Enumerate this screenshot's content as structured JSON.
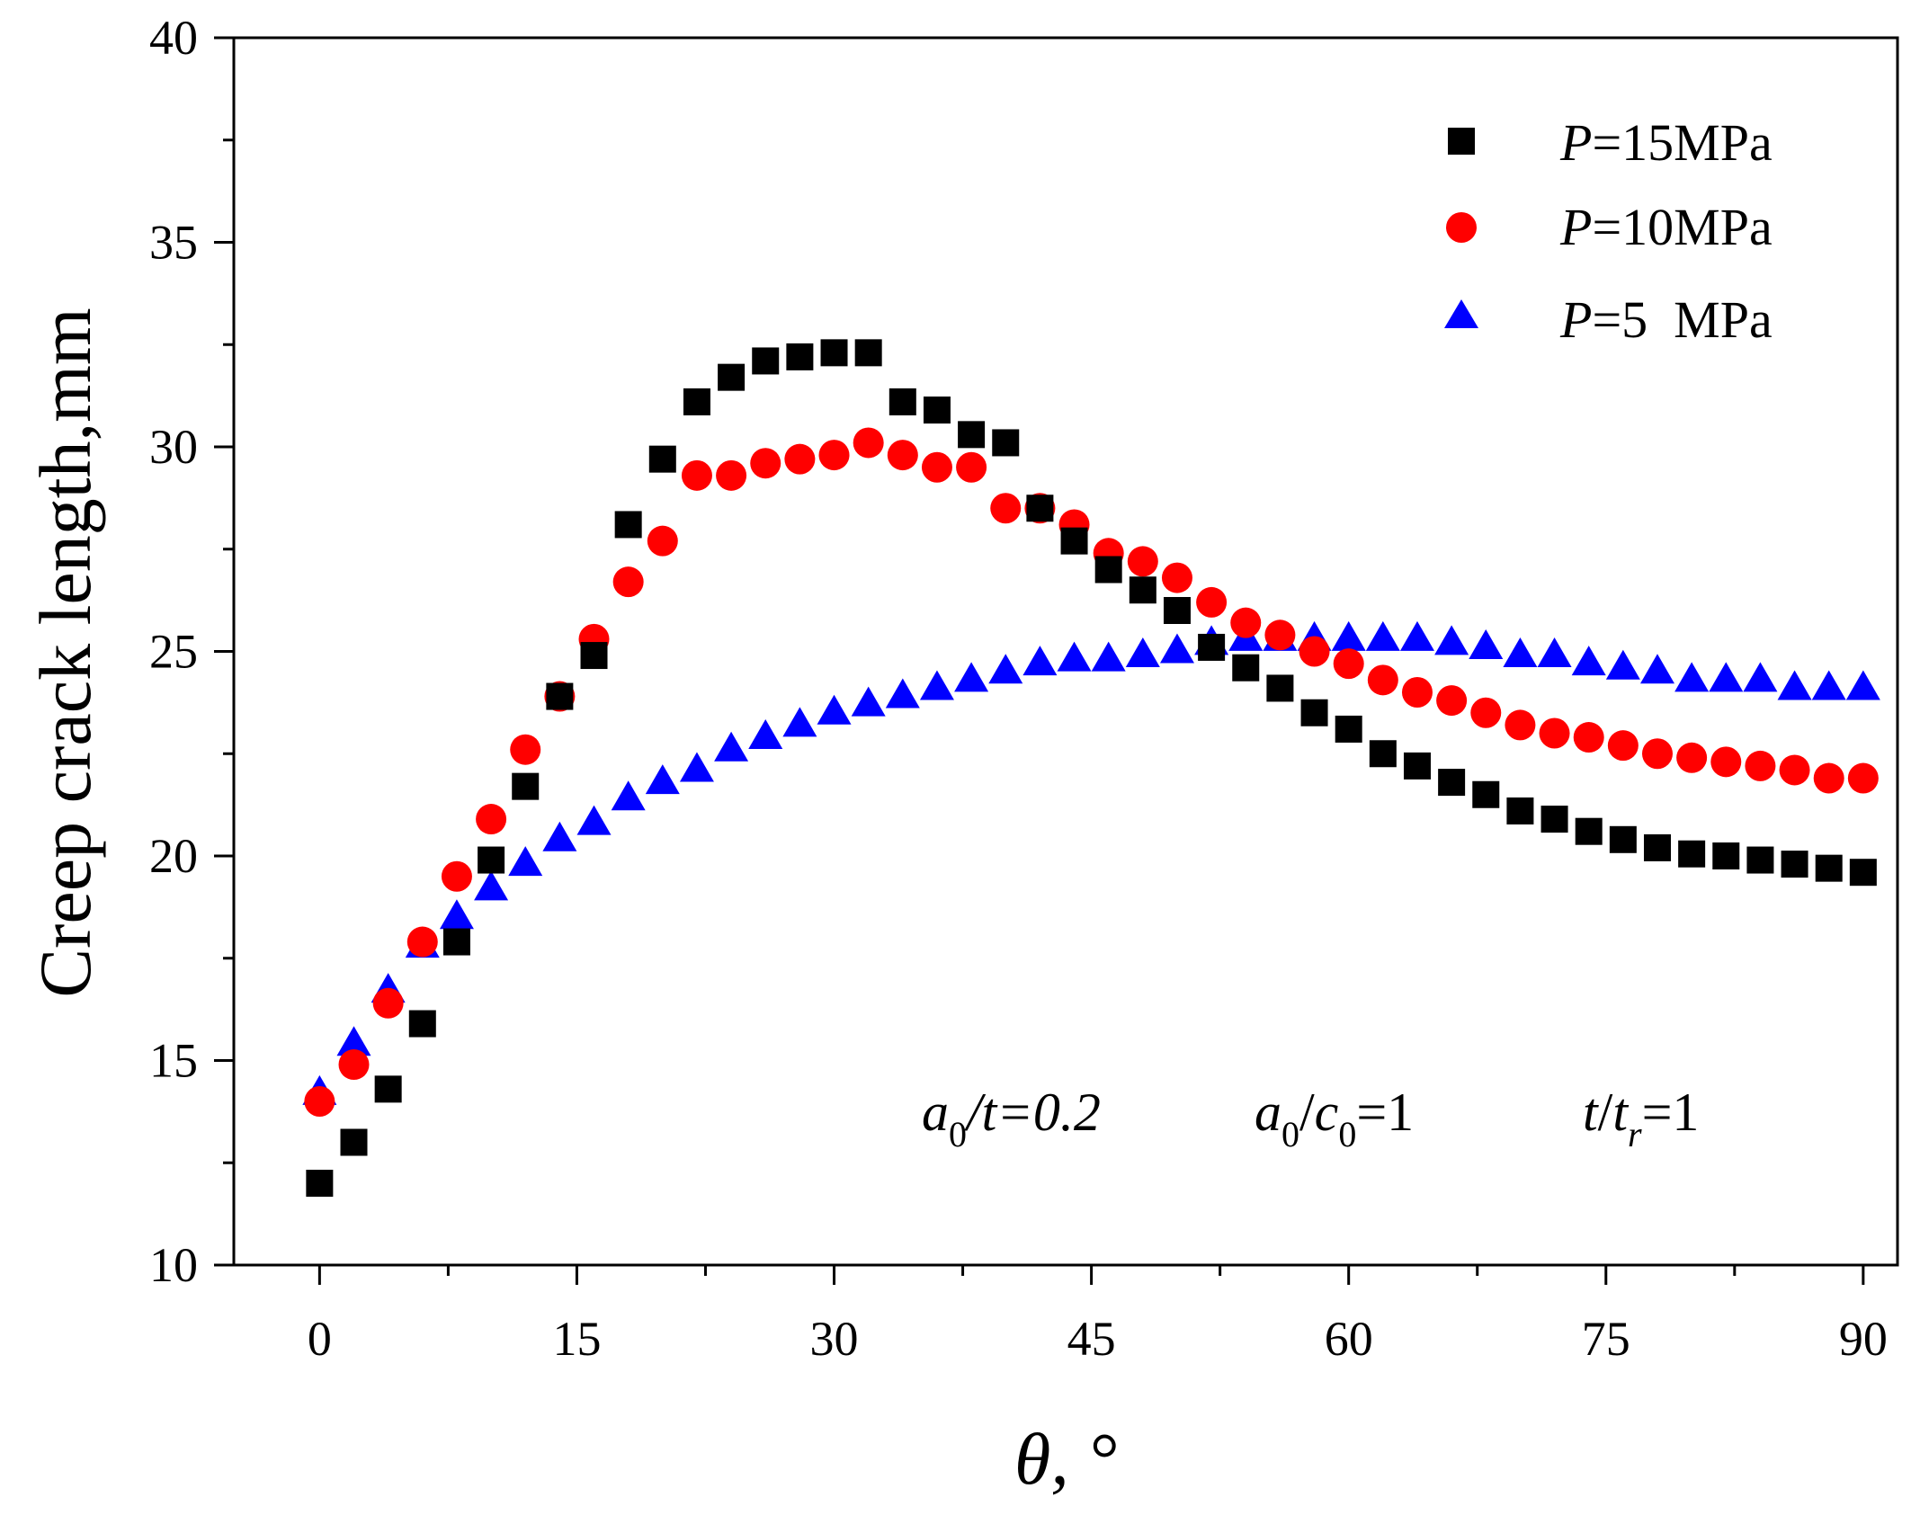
{
  "chart_data": {
    "type": "scatter",
    "title": "",
    "xlabel": "θ, °",
    "ylabel": "Creep crack length,mm",
    "xlim": [
      -5,
      92
    ],
    "ylim": [
      10,
      40
    ],
    "xticks": [
      0,
      15,
      30,
      45,
      60,
      75,
      90
    ],
    "yticks": [
      10,
      15,
      20,
      25,
      30,
      35,
      40
    ],
    "xtick_labels": [
      "0",
      "15",
      "30",
      "45",
      "60",
      "75",
      "90"
    ],
    "ytick_labels": [
      "10",
      "15",
      "20",
      "25",
      "30",
      "35",
      "40"
    ],
    "legend_position": "top-right",
    "x": [
      0,
      2,
      4,
      6,
      8,
      10,
      12,
      14,
      16,
      18,
      20,
      22,
      24,
      26,
      28,
      30,
      32,
      34,
      36,
      38,
      40,
      42,
      44,
      46,
      48,
      50,
      52,
      54,
      56,
      58,
      60,
      62,
      64,
      66,
      68,
      70,
      72,
      74,
      76,
      78,
      80,
      82,
      84,
      86,
      88,
      90
    ],
    "series": [
      {
        "name": "P=15MPa",
        "legend_italic": "P",
        "legend_rest": "=15MPa",
        "marker": "square",
        "color": "#000000",
        "values": [
          12.0,
          13.0,
          14.3,
          15.9,
          17.9,
          19.9,
          21.7,
          23.9,
          24.9,
          28.1,
          29.7,
          31.1,
          31.7,
          32.1,
          32.2,
          32.3,
          32.3,
          31.1,
          30.9,
          30.3,
          30.1,
          28.5,
          27.7,
          27.0,
          26.5,
          26.0,
          25.1,
          24.6,
          24.1,
          23.5,
          23.1,
          22.5,
          22.2,
          21.8,
          21.5,
          21.1,
          20.9,
          20.6,
          20.4,
          20.2,
          20.05,
          20.0,
          19.9,
          19.8,
          19.7,
          19.6
        ]
      },
      {
        "name": "P=10MPa",
        "legend_italic": "P",
        "legend_rest": "=10MPa",
        "marker": "circle",
        "color": "#ff0000",
        "values": [
          14.0,
          14.9,
          16.4,
          17.9,
          19.5,
          20.9,
          22.6,
          23.9,
          25.3,
          26.7,
          27.7,
          29.3,
          29.3,
          29.6,
          29.7,
          29.8,
          30.1,
          29.8,
          29.5,
          29.5,
          28.5,
          28.5,
          28.1,
          27.4,
          27.2,
          26.8,
          26.2,
          25.7,
          25.4,
          25.0,
          24.7,
          24.3,
          24.0,
          23.8,
          23.5,
          23.2,
          23.0,
          22.9,
          22.7,
          22.5,
          22.4,
          22.3,
          22.2,
          22.1,
          21.9,
          21.9
        ]
      },
      {
        "name": "P=5  MPa",
        "legend_italic": "P",
        "legend_rest": "=5  MPa",
        "marker": "triangle",
        "color": "#0000ff",
        "values": [
          14.2,
          15.4,
          16.7,
          17.8,
          18.5,
          19.2,
          19.8,
          20.4,
          20.8,
          21.4,
          21.8,
          22.1,
          22.6,
          22.9,
          23.2,
          23.5,
          23.7,
          23.9,
          24.1,
          24.3,
          24.5,
          24.7,
          24.8,
          24.8,
          24.9,
          25.0,
          25.2,
          25.3,
          25.3,
          25.3,
          25.3,
          25.3,
          25.3,
          25.2,
          25.1,
          24.9,
          24.9,
          24.7,
          24.6,
          24.5,
          24.3,
          24.3,
          24.3,
          24.1,
          24.1,
          24.1
        ]
      }
    ],
    "annotations": [
      {
        "text": "a0/t=0.2",
        "parts": [
          "a",
          "0",
          "/t=0.2"
        ]
      },
      {
        "text": "a0/c0=1",
        "parts": [
          "a",
          "0",
          "/",
          "c",
          "0",
          "=1"
        ]
      },
      {
        "text": "t/tr=1",
        "parts": [
          "t",
          "/",
          "t",
          "r",
          "=1"
        ]
      }
    ]
  }
}
